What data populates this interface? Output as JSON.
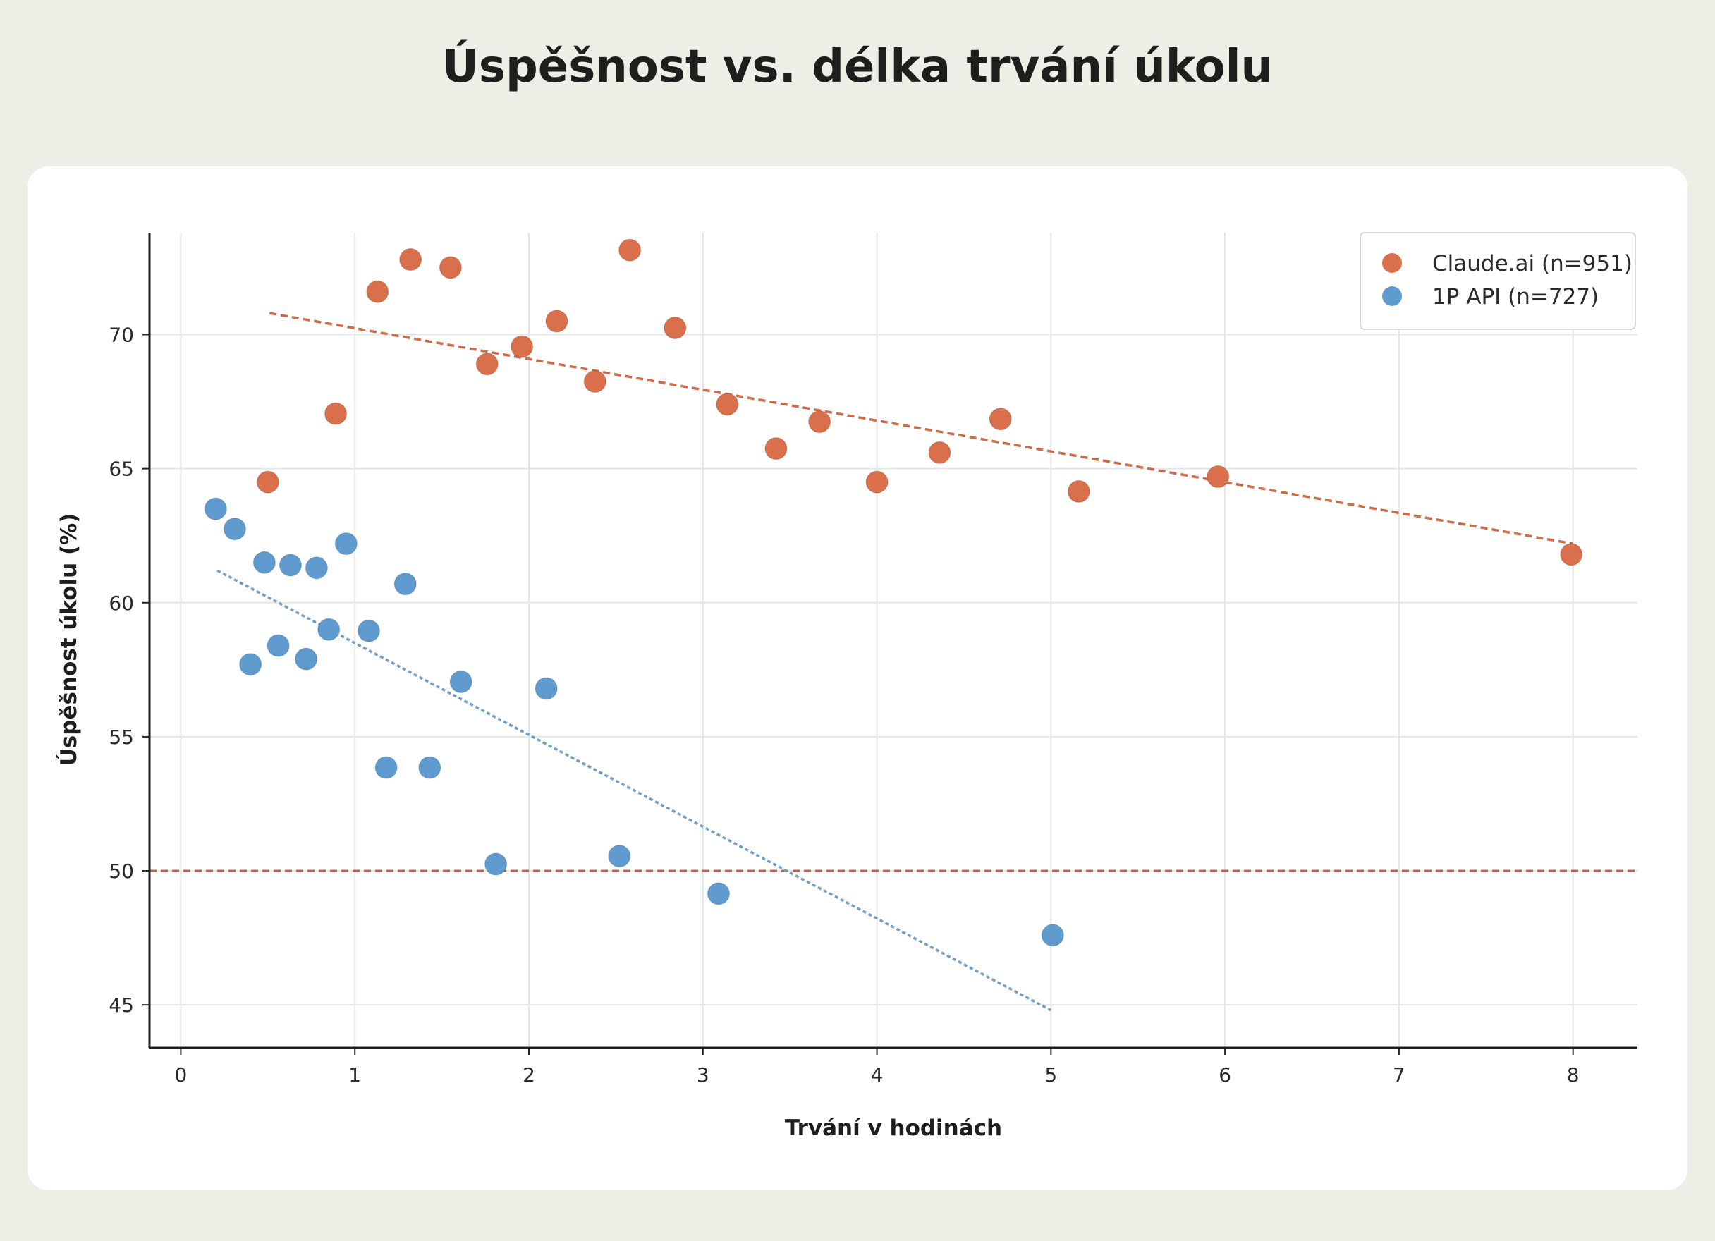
{
  "title": "Úspěšnost vs. délka trvání úkolu",
  "chart_data": {
    "type": "scatter",
    "title": "Úspěšnost vs. délka trvání úkolu",
    "xlabel": "Trvání v hodinách",
    "ylabel": "Úspěšnost úkolu (%)",
    "xlim": [
      -0.18,
      8.37
    ],
    "ylim": [
      43.4,
      73.8
    ],
    "xticks": [
      0,
      1,
      2,
      3,
      4,
      5,
      6,
      7,
      8
    ],
    "yticks": [
      45,
      50,
      55,
      60,
      65,
      70
    ],
    "grid": true,
    "legend_position": "top-right",
    "reference_line": {
      "y": 50,
      "style": "dashed",
      "color": "#c0614a"
    },
    "series": [
      {
        "name": "Claude.ai (n=951)",
        "color": "#d9704b",
        "points": [
          [
            0.5,
            64.5
          ],
          [
            0.89,
            67.05
          ],
          [
            1.13,
            71.6
          ],
          [
            1.32,
            72.8
          ],
          [
            1.55,
            72.5
          ],
          [
            1.76,
            68.9
          ],
          [
            1.96,
            69.55
          ],
          [
            2.16,
            70.5
          ],
          [
            2.38,
            68.25
          ],
          [
            2.58,
            73.15
          ],
          [
            2.84,
            70.25
          ],
          [
            3.14,
            67.4
          ],
          [
            3.42,
            65.75
          ],
          [
            3.67,
            66.75
          ],
          [
            4.0,
            64.5
          ],
          [
            4.36,
            65.6
          ],
          [
            4.71,
            66.85
          ],
          [
            5.16,
            64.15
          ],
          [
            5.96,
            64.7
          ],
          [
            7.99,
            61.8
          ]
        ],
        "trend": [
          [
            0.51,
            70.8
          ],
          [
            8.0,
            62.2
          ]
        ]
      },
      {
        "name": "1P API (n=727)",
        "color": "#5f9bcf",
        "points": [
          [
            0.2,
            63.5
          ],
          [
            0.31,
            62.75
          ],
          [
            0.4,
            57.7
          ],
          [
            0.48,
            61.5
          ],
          [
            0.56,
            58.4
          ],
          [
            0.63,
            61.4
          ],
          [
            0.72,
            57.9
          ],
          [
            0.78,
            61.3
          ],
          [
            0.85,
            59.0
          ],
          [
            0.95,
            62.2
          ],
          [
            1.08,
            58.95
          ],
          [
            1.18,
            53.85
          ],
          [
            1.29,
            60.7
          ],
          [
            1.43,
            53.85
          ],
          [
            1.61,
            57.05
          ],
          [
            1.81,
            50.25
          ],
          [
            2.1,
            56.8
          ],
          [
            2.52,
            50.55
          ],
          [
            3.09,
            49.15
          ],
          [
            5.01,
            47.6
          ]
        ],
        "trend": [
          [
            0.21,
            61.2
          ],
          [
            5.0,
            44.8
          ]
        ]
      }
    ]
  }
}
